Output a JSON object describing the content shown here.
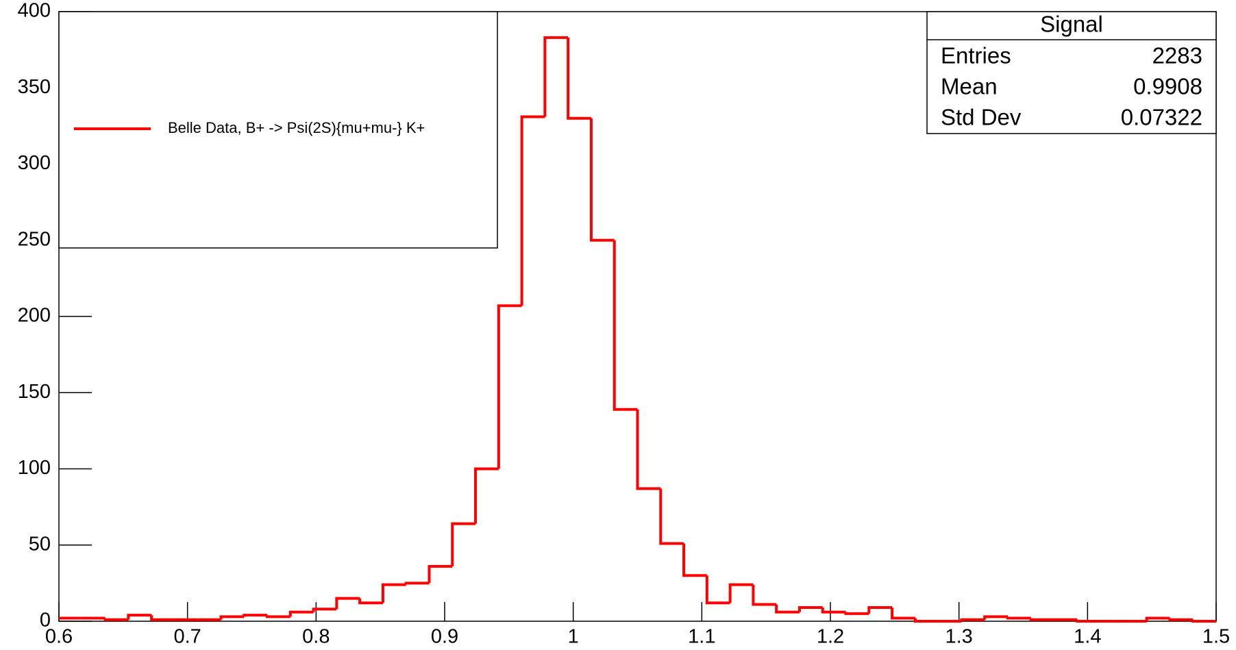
{
  "chart_data": {
    "type": "histogram",
    "bins": [
      0.6,
      0.618,
      0.636,
      0.654,
      0.672,
      0.69,
      0.708,
      0.726,
      0.744,
      0.762,
      0.78,
      0.798,
      0.816,
      0.834,
      0.852,
      0.87,
      0.888,
      0.906,
      0.924,
      0.942,
      0.96,
      0.978,
      0.996,
      1.014,
      1.032,
      1.05,
      1.068,
      1.086,
      1.104,
      1.122,
      1.14,
      1.158,
      1.176,
      1.194,
      1.212,
      1.23,
      1.248,
      1.266,
      1.284,
      1.302,
      1.32,
      1.338,
      1.356,
      1.374,
      1.392,
      1.41,
      1.428,
      1.446,
      1.464,
      1.482,
      1.5
    ],
    "series": [
      {
        "name": "Belle Data, B+ -> Psi(2S){mu+mu-} K+",
        "color": "#ff0000",
        "values": [
          2,
          2,
          1,
          4,
          1,
          1,
          1,
          3,
          4,
          3,
          6,
          8,
          15,
          12,
          24,
          25,
          36,
          64,
          100,
          207,
          331,
          383,
          330,
          250,
          139,
          87,
          51,
          30,
          12,
          24,
          11,
          6,
          9,
          6,
          5,
          9,
          2,
          0,
          0,
          1,
          3,
          2,
          1,
          1,
          0,
          0,
          0,
          2,
          1,
          0
        ]
      }
    ],
    "xlim": [
      0.6,
      1.5
    ],
    "xticks": [
      0.6,
      0.7,
      0.8,
      0.9,
      1,
      1.1,
      1.2,
      1.3,
      1.4,
      1.5
    ],
    "ylim": [
      0,
      400
    ],
    "yticks": [
      0,
      50,
      100,
      150,
      200,
      250,
      300,
      350,
      400
    ],
    "stats": {
      "title": "Signal",
      "rows": [
        {
          "label": "Entries",
          "value": 2283
        },
        {
          "label": "Mean",
          "value": 0.9908
        },
        {
          "label": "Std Dev",
          "value": 0.07322
        }
      ]
    }
  }
}
